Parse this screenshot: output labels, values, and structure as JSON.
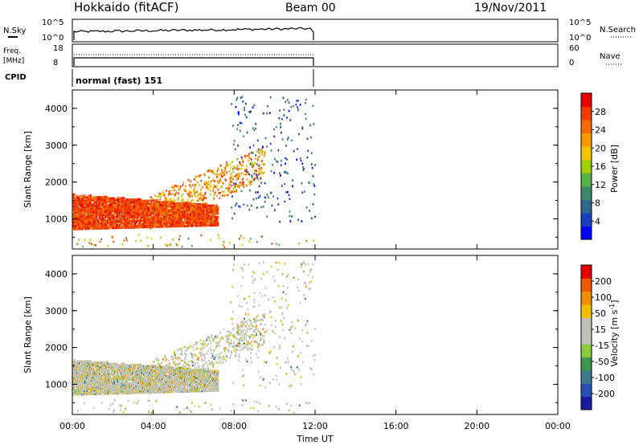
{
  "header": {
    "station": "Hokkaido (fitACF)",
    "beam": "Beam 00",
    "date": "19/Nov/2011"
  },
  "noise_panel": {
    "left_label": "N.Sky",
    "left_ticks": [
      "10^5",
      "10^0"
    ],
    "right_ticks": [
      "10^5",
      "10^0"
    ],
    "right_label": "N.Search"
  },
  "freq_panel": {
    "left_label_1": "Freq.",
    "left_label_2": "[MHz]",
    "left_ticks": [
      "18",
      "8"
    ],
    "right_ticks": [
      "60",
      "0"
    ],
    "right_label": "Nave"
  },
  "cpid": {
    "label": "CPID",
    "value": "normal (fast) 151"
  },
  "chart_data": [
    {
      "type": "heatmap",
      "parameter": "Power",
      "ylabel": "Slant Range [km]",
      "ylim": [
        180,
        4500
      ],
      "yticks": [
        "1000",
        "2000",
        "3000",
        "4000"
      ],
      "xlim_hours": [
        0,
        24
      ],
      "colorbar_label": "Power [dB]",
      "colorbar_ticks": [
        "28",
        "24",
        "20",
        "16",
        "12",
        "8",
        "4"
      ],
      "colorbar_colors": [
        "#0000ff",
        "#1a3fbf",
        "#2f6a8a",
        "#3d8a6a",
        "#55b048",
        "#a0d000",
        "#f5c400",
        "#f59b00",
        "#f56a00",
        "#f03c00",
        "#e60000"
      ]
    },
    {
      "type": "heatmap",
      "parameter": "Velocity",
      "ylabel": "Slant Range [km]",
      "ylim": [
        180,
        4500
      ],
      "yticks": [
        "1000",
        "2000",
        "3000",
        "4000"
      ],
      "xlim_hours": [
        0,
        24
      ],
      "colorbar_label": "Velocity [m s^-1]",
      "colorbar_ticks": [
        "200",
        "100",
        "50",
        "15",
        "-15",
        "-50",
        "-100",
        "-200"
      ],
      "colorbar_colors": [
        "#1a1aa0",
        "#2850b4",
        "#3c7a8c",
        "#3c9650",
        "#8ccc3c",
        "#c0c0b8",
        "#c0c0b8",
        "#f0c000",
        "#f09000",
        "#f05a00",
        "#e60000"
      ]
    }
  ],
  "time_axis": {
    "ticks": [
      "00:00",
      "04:00",
      "08:00",
      "12:00",
      "16:00",
      "20:00",
      "00:00"
    ],
    "label": "Time UT"
  }
}
